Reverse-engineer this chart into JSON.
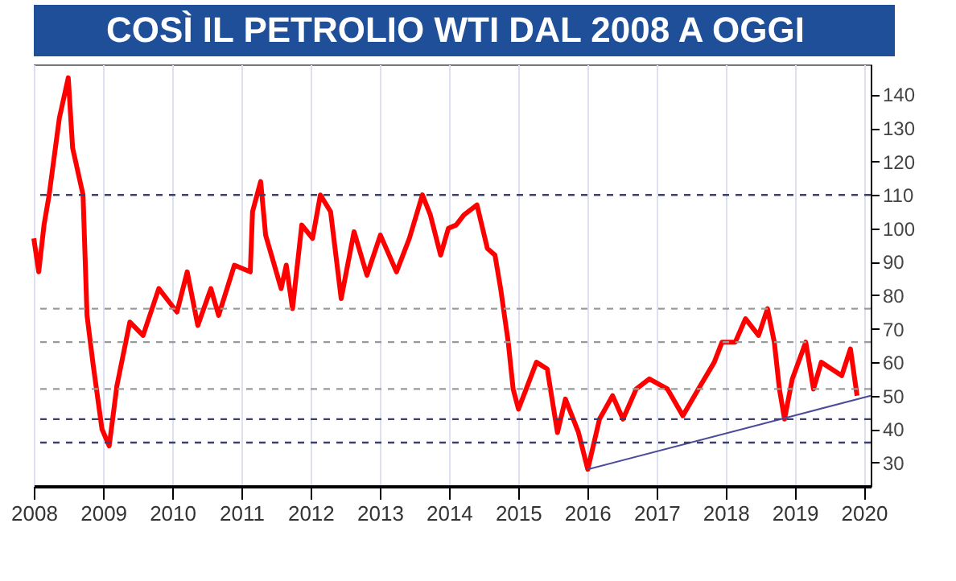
{
  "chart_data": {
    "type": "line",
    "title": "COSÌ IL PETROLIO WTI DAL 2008 A OGGI",
    "series": [
      {
        "color": "#ff0000",
        "x": [
          "2008-01-01",
          "2008-01-27",
          "2008-02-24",
          "2008-03-22",
          "2008-05-15",
          "2008-07-01",
          "2008-07-24",
          "2008-09-17",
          "2008-10-08",
          "2008-11-10",
          "2008-12-26",
          "2009-02-02",
          "2009-03-15",
          "2009-05-22",
          "2009-07-31",
          "2009-10-22",
          "2010-01-26",
          "2010-03-21",
          "2010-05-16",
          "2010-07-24",
          "2010-09-03",
          "2010-11-25",
          "2011-02-17",
          "2011-03-01",
          "2011-04-13",
          "2011-05-09",
          "2011-07-30",
          "2011-08-26",
          "2011-09-28",
          "2011-11-16",
          "2012-01-12",
          "2012-02-22",
          "2012-04-16",
          "2012-06-11",
          "2012-08-18",
          "2012-10-25",
          "2013-01-04",
          "2013-03-30",
          "2013-06-06",
          "2013-08-14",
          "2013-09-25",
          "2013-11-18",
          "2013-12-29",
          "2014-02-08",
          "2014-03-21",
          "2014-05-29",
          "2014-07-23",
          "2014-09-01",
          "2014-10-01",
          "2014-11-10",
          "2014-12-06",
          "2015-01-03",
          "2015-02-13",
          "2015-04-08",
          "2015-06-04",
          "2015-07-28",
          "2015-09-08",
          "2015-11-16",
          "2016-01-04",
          "2016-03-06",
          "2016-05-14",
          "2016-07-08",
          "2016-09-16",
          "2016-11-24",
          "2017-02-28",
          "2017-05-20",
          "2017-08-10",
          "2017-11-02",
          "2017-12-13",
          "2018-02-21",
          "2018-04-16",
          "2018-06-24",
          "2018-08-10",
          "2018-09-15",
          "2018-10-12",
          "2018-11-08",
          "2018-12-19",
          "2019-02-28",
          "2019-04-10",
          "2019-05-21",
          "2019-07-14",
          "2019-09-06",
          "2019-10-22",
          "2019-11-26"
        ],
        "values": [
          97,
          87,
          101,
          110,
          133,
          145,
          124,
          110,
          74,
          59,
          40,
          35,
          53,
          72,
          68,
          82,
          75,
          87,
          71,
          82,
          74,
          89,
          87,
          105,
          114,
          98,
          82,
          89,
          76,
          101,
          97,
          110,
          105,
          79,
          99,
          86,
          98,
          87,
          97,
          110,
          104,
          92,
          100,
          101,
          104,
          107,
          94,
          92,
          82,
          66,
          52,
          46,
          52,
          60,
          58,
          39,
          49,
          39,
          28,
          43,
          50,
          43,
          52,
          55,
          52,
          44,
          52,
          60,
          66,
          66,
          73,
          68,
          76,
          66,
          52,
          43,
          55,
          66,
          52,
          60,
          58,
          56,
          64,
          50
        ]
      },
      {
        "type": "line",
        "color": "#4b4b9b",
        "x": [
          "2016-01-04",
          "2020-02-06"
        ],
        "values": [
          28,
          50
        ]
      }
    ],
    "xlim": [
      "2008-01-01",
      "2020-02-06"
    ],
    "xticks": [
      "2008",
      "2009",
      "2010",
      "2011",
      "2012",
      "2013",
      "2014",
      "2015",
      "2016",
      "2017",
      "2018",
      "2019",
      "2020"
    ],
    "ylim": [
      23,
      149
    ],
    "yticks": [
      30,
      40,
      50,
      60,
      70,
      80,
      90,
      100,
      110,
      120,
      130,
      140
    ],
    "ref_lines": [
      {
        "axis": "y",
        "value": 110,
        "color": "#3a3f6e",
        "line_style": "dashed"
      },
      {
        "axis": "y",
        "value": 76,
        "color": "#9a9a9a",
        "line_style": "dashed"
      },
      {
        "axis": "y",
        "value": 66,
        "color": "#9a9a9a",
        "line_style": "dashed"
      },
      {
        "axis": "y",
        "value": 52,
        "color": "#9a9a9a",
        "line_style": "dashed"
      },
      {
        "axis": "y",
        "value": 43,
        "color": "#3a3f6e",
        "line_style": "dashed"
      },
      {
        "axis": "y",
        "value": 36,
        "color": "#3a3f6e",
        "line_style": "dashed"
      }
    ],
    "grid": "x",
    "legend": false
  }
}
